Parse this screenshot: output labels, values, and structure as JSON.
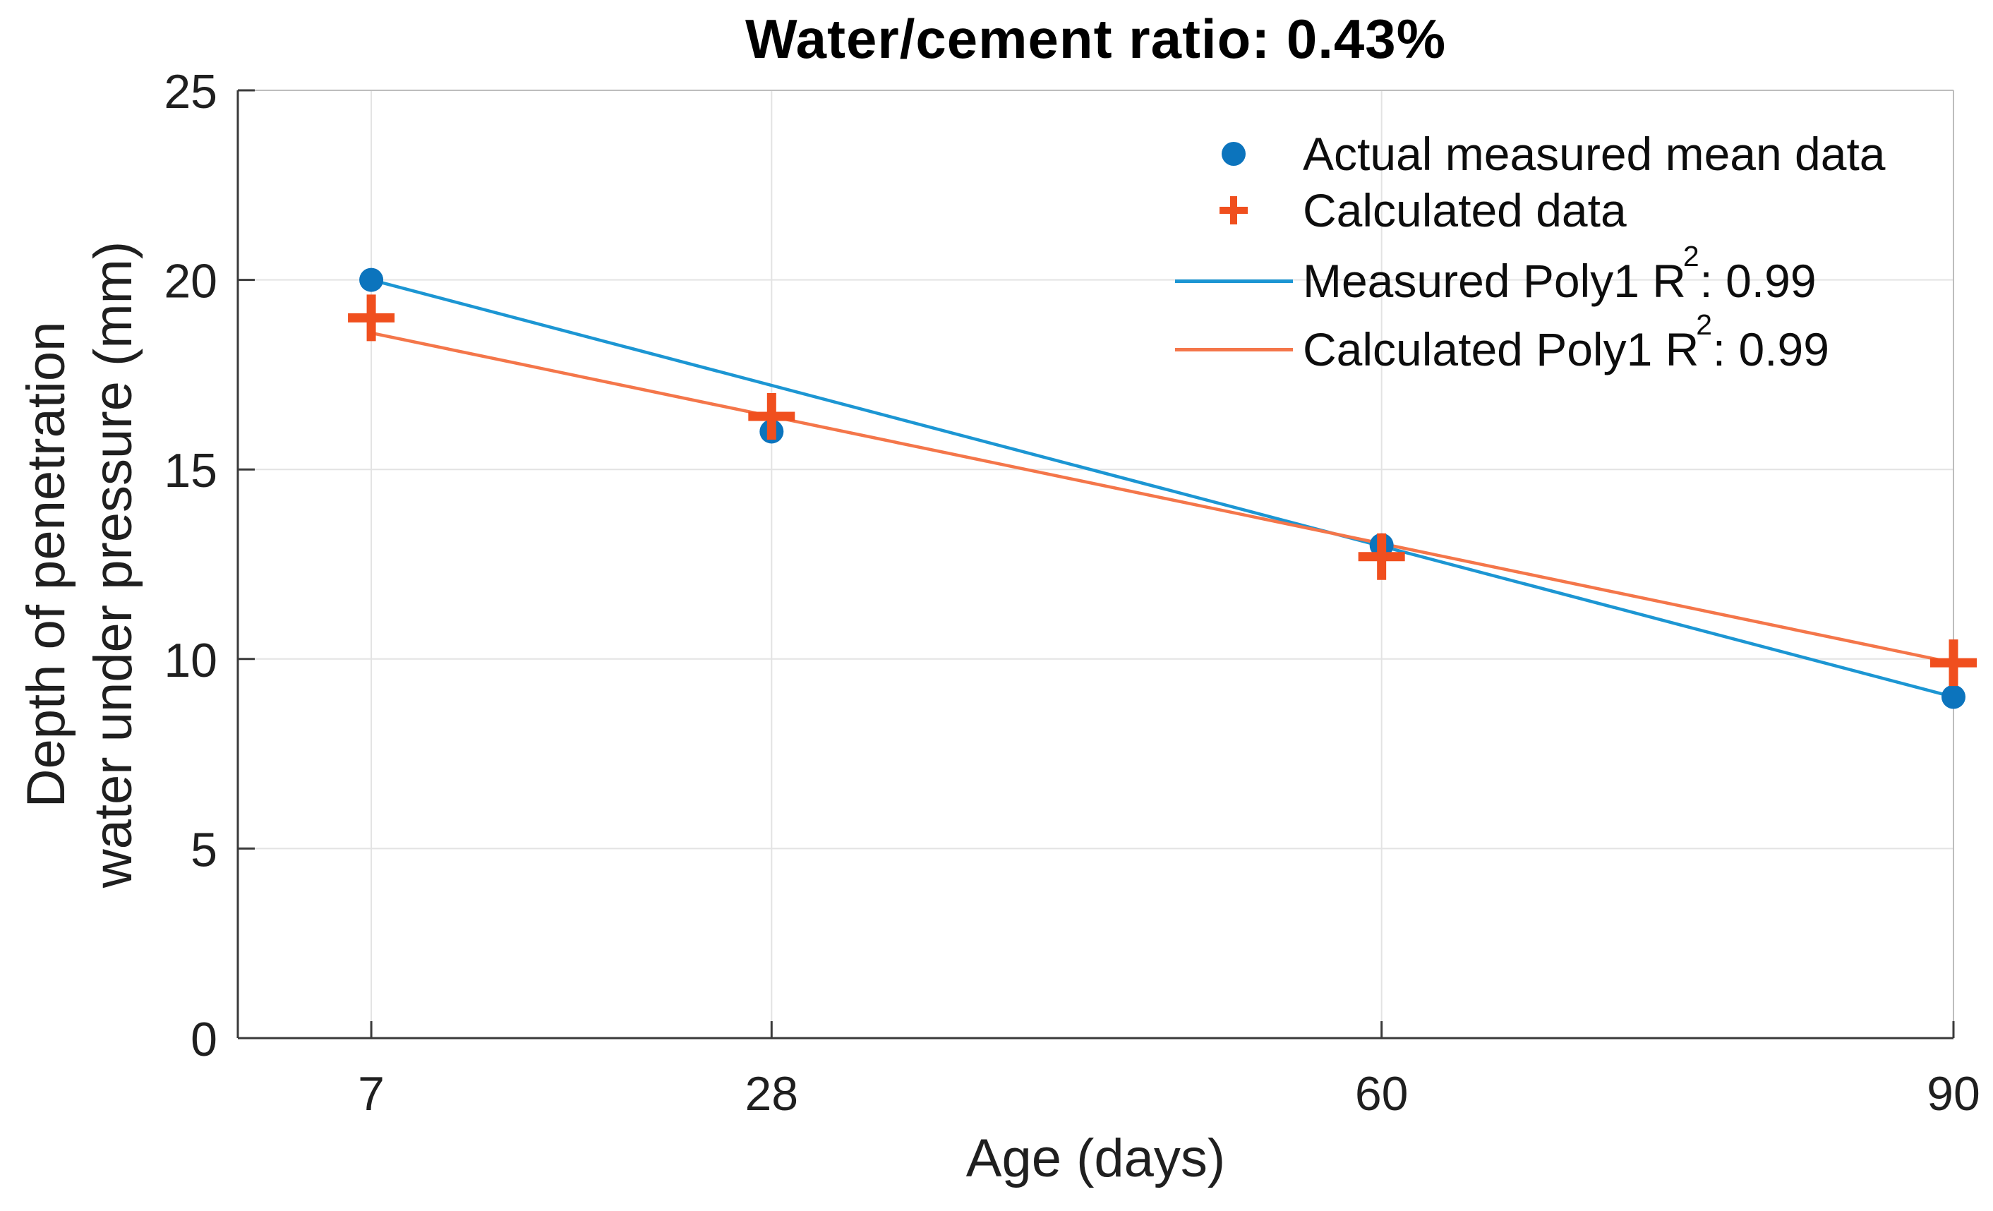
{
  "title": "Water/cement ratio: 0.43%",
  "axes": {
    "x_label": "Age (days)",
    "y_label_line1": "Depth of penetration",
    "y_label_line2": "water under pressure (mm)",
    "x_ticks": [
      7,
      28,
      60,
      90
    ],
    "y_ticks": [
      0,
      5,
      10,
      15,
      20,
      25
    ],
    "xlim": [
      0,
      90
    ],
    "ylim": [
      0,
      25
    ]
  },
  "legend": {
    "items": [
      {
        "marker": "dot",
        "label": "Actual measured mean data"
      },
      {
        "marker": "plus",
        "label": "Calculated data"
      },
      {
        "marker": "line-blue",
        "label_prefix": "Measured Poly1 R",
        "label_sup": "2",
        "label_suffix": ": 0.99"
      },
      {
        "marker": "line-orange",
        "label_prefix": "Calculated Poly1 R",
        "label_sup": "2",
        "label_suffix": ": 0.99"
      }
    ]
  },
  "chart_data": {
    "type": "scatter",
    "title": "Water/cement ratio: 0.43%",
    "xlabel": "Age (days)",
    "ylabel": "Depth of penetration water under pressure (mm)",
    "x": [
      7,
      28,
      60,
      90
    ],
    "series": [
      {
        "name": "Actual measured mean data",
        "marker": "dot",
        "values": [
          20,
          16,
          13,
          9
        ]
      },
      {
        "name": "Calculated data",
        "marker": "plus",
        "values": [
          19,
          16.4,
          12.7,
          9.9
        ]
      }
    ],
    "fit_lines": [
      {
        "name": "Measured Poly1",
        "r2": 0.99,
        "x": [
          7,
          90
        ],
        "y": [
          20.0,
          9.0
        ]
      },
      {
        "name": "Calculated Poly1",
        "r2": 0.99,
        "x": [
          7,
          90
        ],
        "y": [
          18.6,
          9.9
        ]
      }
    ],
    "xlim": [
      0,
      90
    ],
    "ylim": [
      0,
      25
    ],
    "grid": true,
    "legend_position": "top-right-inside"
  },
  "colors": {
    "measured_marker": "#0C74BD",
    "calculated_marker": "#F04F1E",
    "measured_fit_line": "#1C96D3",
    "calculated_fit_line": "#F4764A",
    "grid": "#E3E3E3",
    "box_edge": "#BDBDBD",
    "axis": "#3A3A3A",
    "tick_text": "#1f1f1f",
    "background": "#FFFFFF"
  }
}
